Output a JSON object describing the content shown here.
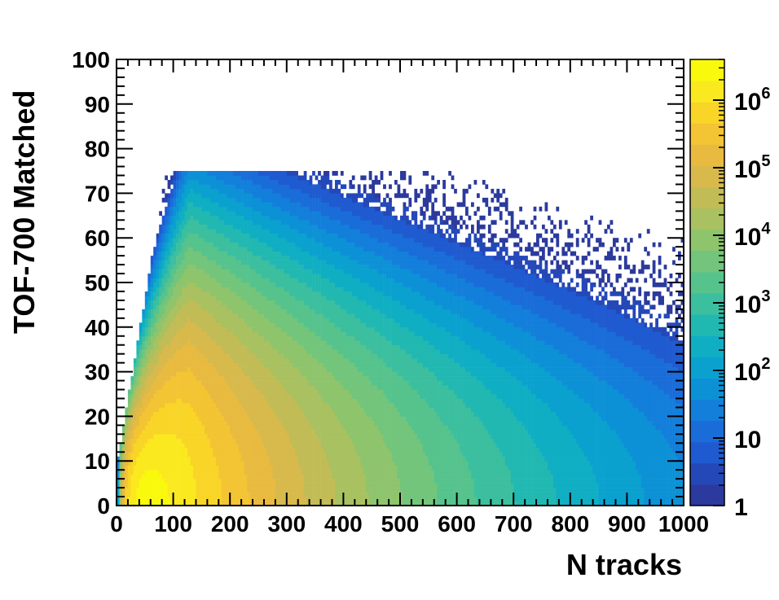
{
  "chart_data": {
    "type": "heatmap",
    "title": "",
    "xlabel": "N tracks",
    "ylabel": "TOF-700 Matched",
    "xlim": [
      0,
      1000
    ],
    "ylim": [
      0,
      100
    ],
    "x_ticks": [
      "0",
      "100",
      "200",
      "300",
      "400",
      "500",
      "600",
      "700",
      "800",
      "900",
      "1000"
    ],
    "y_ticks": [
      "0",
      "10",
      "20",
      "30",
      "40",
      "50",
      "60",
      "70",
      "80",
      "90",
      "100"
    ],
    "colorbar": {
      "scale": "log",
      "range": [
        1,
        4000000
      ],
      "ticks": [
        {
          "value": 1,
          "base": "1",
          "exp": ""
        },
        {
          "value": 10,
          "base": "10",
          "exp": ""
        },
        {
          "value": 100,
          "base": "10",
          "exp": "2"
        },
        {
          "value": 1000,
          "base": "10",
          "exp": "3"
        },
        {
          "value": 10000,
          "base": "10",
          "exp": "4"
        },
        {
          "value": 100000,
          "base": "10",
          "exp": "5"
        },
        {
          "value": 1000000,
          "base": "10",
          "exp": "6"
        }
      ],
      "colors": [
        "#2b3a9c",
        "#2448b8",
        "#1f5ad0",
        "#1a6dd9",
        "#137fdb",
        "#0d91d6",
        "#0aa1cf",
        "#10aec3",
        "#22b8b2",
        "#3cbf9f",
        "#56c38d",
        "#72c57b",
        "#8ec46c",
        "#a9c160",
        "#c2bc56",
        "#d8b94c",
        "#e8bb40",
        "#f3c433",
        "#f9d528",
        "#fbe91f",
        "#f9f90e"
      ]
    },
    "distribution": {
      "description_free": true,
      "peak": {
        "x": 60,
        "y": 4,
        "counts": 3000000
      },
      "ridge_slope": 0.28,
      "max_y_edge": 70,
      "sparse_tail_x": 1000
    }
  }
}
